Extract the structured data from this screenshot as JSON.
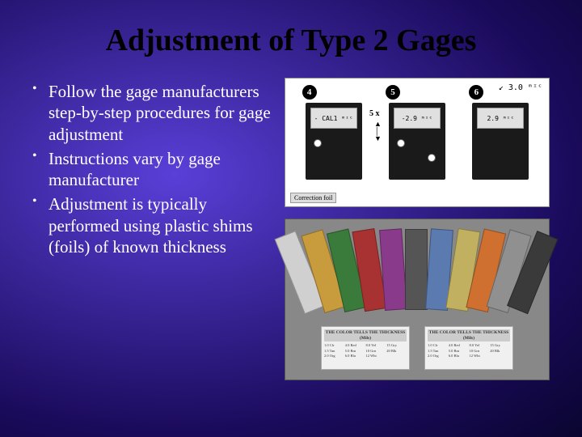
{
  "title": "Adjustment of Type 2 Gages",
  "bullets": [
    "Follow the gage manufacturers step-by-step procedures for gage adjustment",
    "Instructions vary by gage manufacturer",
    "Adjustment is typically performed using plastic shims (foils) of known thickness"
  ],
  "diagram": {
    "steps": [
      "4",
      "5",
      "6"
    ],
    "screens": [
      "- CAL1 ᵐᶦᶜ",
      "-2.9 ᵐᶦᶜ",
      "2.9 ᵐᶦᶜ"
    ],
    "five_x": "5 x",
    "reading": "↙ 3.0 ᵐᶦᶜ",
    "correction": "Correction foil"
  },
  "shims": {
    "colors": [
      "#d0d0d0",
      "#c89b3c",
      "#3a7a3a",
      "#a83232",
      "#8a3a8a",
      "#555555",
      "#5a7ab0",
      "#c0b060",
      "#d07030",
      "#909090",
      "#3a3a3a"
    ],
    "rotations": [
      -22,
      -17,
      -13,
      -9,
      -4,
      0,
      4,
      9,
      13,
      17,
      22
    ],
    "card1_title": "THE COLOR TELLS THE THICKNESS (Mils)",
    "card2_title": "THE COLOR TELLS THE THICKNESS (Mils)"
  }
}
